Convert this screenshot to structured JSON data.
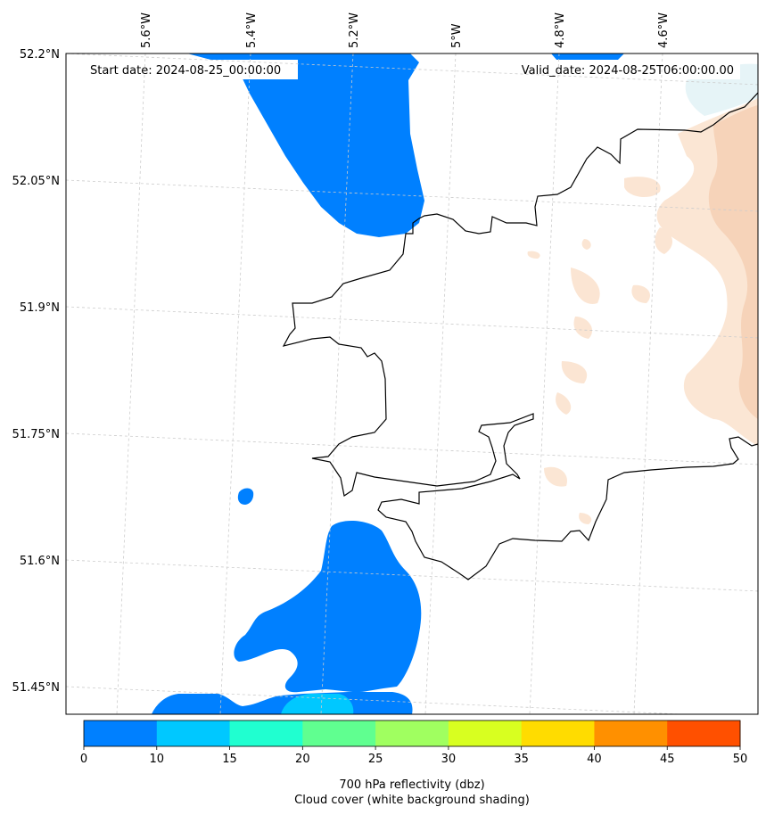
{
  "map": {
    "start_label": "Start date: 2024-08-25_00:00:00",
    "valid_label": "Valid_date: 2024-08-25T06:00:00.00",
    "lon_ticks": [
      "5.6°W",
      "5.4°W",
      "5.2°W",
      "5°W",
      "4.8°W",
      "4.6°W"
    ],
    "lat_ticks": [
      "52.2°N",
      "52.05°N",
      "51.9°N",
      "51.75°N",
      "51.6°N",
      "51.45°N"
    ],
    "gridlines": true,
    "coastline_color": "#000000",
    "cloud_shading_color": "#ffffff",
    "land_shading_color": "#f8d8c0"
  },
  "colorbar": {
    "ticks": [
      "0",
      "10",
      "15",
      "20",
      "25",
      "30",
      "35",
      "40",
      "45",
      "50"
    ],
    "colors": [
      "#0080ff",
      "#00c8ff",
      "#20ffd0",
      "#60ff90",
      "#a0ff60",
      "#d8ff20",
      "#ffdc00",
      "#ff9000",
      "#ff5000"
    ],
    "label_line1": "700 hPa reflectivity (dbz)",
    "label_line2": "Cloud cover (white background shading)"
  }
}
